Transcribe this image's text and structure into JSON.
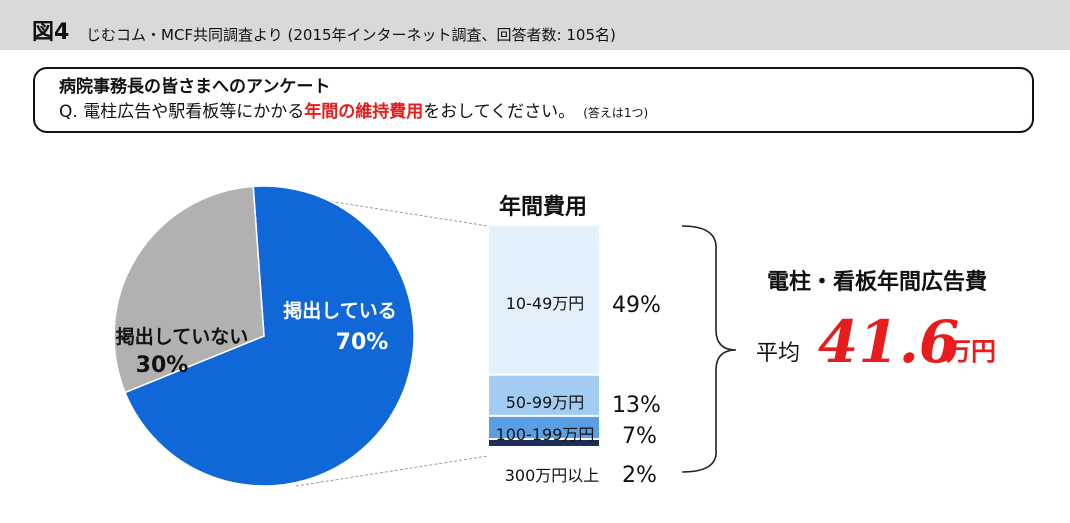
{
  "header": {
    "figure_number": "図4",
    "source": "じむコム・MCF共同調査より (2015年インターネット調査、回答者数: 105名)"
  },
  "question": {
    "title": "病院事務長の皆さまへのアンケート",
    "text_before": "Q. 電柱広告や駅看板等にかかる",
    "text_emphasis": "年間の維持費用",
    "text_after": "をおしてください。",
    "note": "(答えは1つ)"
  },
  "summary": {
    "title": "電柱・看板年間広告費",
    "average_prefix": "平均",
    "average_value": "41.6",
    "average_unit": "万円"
  },
  "colors": {
    "pie_posted": "#0f67d8",
    "pie_not_posted": "#b1b1b1",
    "bar_10_49": "#e2f0fc",
    "bar_50_99": "#a3ccf2",
    "bar_100_199": "#5a9ee6",
    "bar_300": "#1c2e55",
    "emphasis": "#e81c1c"
  },
  "chart_data": [
    {
      "type": "pie",
      "categories": [
        "掲出している",
        "掲出していない"
      ],
      "labels": [
        "掲出している",
        "掲出していない"
      ],
      "value_labels": [
        "70%",
        "30%"
      ],
      "values": [
        70,
        30
      ]
    },
    {
      "type": "bar",
      "title": "年間費用",
      "stacked": true,
      "categories": [
        "10-49万円",
        "50-99万円",
        "100-199万円",
        "300万円以上"
      ],
      "value_labels": [
        "49%",
        "13%",
        "7%",
        "2%"
      ],
      "values": [
        49,
        13,
        7,
        2
      ]
    }
  ]
}
